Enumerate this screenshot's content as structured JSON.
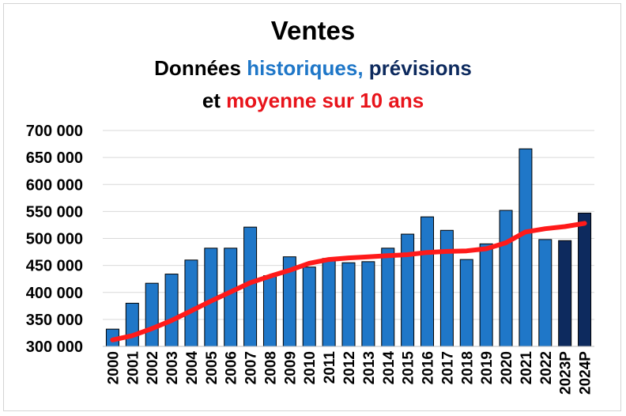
{
  "title": "Ventes",
  "subtitle_line1": {
    "part1": "Données ",
    "part2": "historiques,",
    "part3": " prévisions"
  },
  "subtitle_line2": {
    "part1": "et ",
    "part2": "moyenne sur 10 ans"
  },
  "colors": {
    "historical_bar": "#1f77c8",
    "forecast_bar": "#0d2a5e",
    "moving_average": "#ff1a1a",
    "subtitle_historical": "#1f77c8",
    "subtitle_forecast": "#0d2a5e",
    "subtitle_average": "#e8141b",
    "grid": "#d9d9d9"
  },
  "chart_data": {
    "type": "bar",
    "title": "Ventes",
    "categories": [
      "2000",
      "2001",
      "2002",
      "2003",
      "2004",
      "2005",
      "2006",
      "2007",
      "2008",
      "2009",
      "2010",
      "2011",
      "2012",
      "2013",
      "2014",
      "2015",
      "2016",
      "2017",
      "2018",
      "2019",
      "2020",
      "2021",
      "2022",
      "2023P",
      "2024P"
    ],
    "series": [
      {
        "name": "historiques",
        "type": "bar",
        "values": [
          332000,
          380000,
          417000,
          434000,
          460000,
          482000,
          482000,
          521000,
          431000,
          466000,
          447000,
          463000,
          455000,
          457000,
          482000,
          508000,
          540000,
          515000,
          461000,
          490000,
          552000,
          666000,
          498000,
          null,
          null
        ]
      },
      {
        "name": "prévisions",
        "type": "bar",
        "values": [
          null,
          null,
          null,
          null,
          null,
          null,
          null,
          null,
          null,
          null,
          null,
          null,
          null,
          null,
          null,
          null,
          null,
          null,
          null,
          null,
          null,
          null,
          null,
          496000,
          547000
        ]
      },
      {
        "name": "moyenne sur 10 ans",
        "type": "line",
        "values": [
          312000,
          320000,
          333000,
          348000,
          366000,
          384000,
          401000,
          418000,
          430000,
          441000,
          454000,
          461000,
          464000,
          466000,
          468000,
          470000,
          474000,
          476000,
          477000,
          481000,
          492000,
          512000,
          518000,
          522000,
          528000
        ]
      }
    ],
    "ylim": [
      300000,
      700000
    ],
    "yticks": [
      300000,
      350000,
      400000,
      450000,
      500000,
      550000,
      600000,
      650000,
      700000
    ],
    "ytick_labels": [
      "300 000",
      "350 000",
      "400 000",
      "450 000",
      "500 000",
      "550 000",
      "600 000",
      "650 000",
      "700 000"
    ],
    "xlabel": "",
    "ylabel": "",
    "grid": true,
    "legend": "none"
  }
}
